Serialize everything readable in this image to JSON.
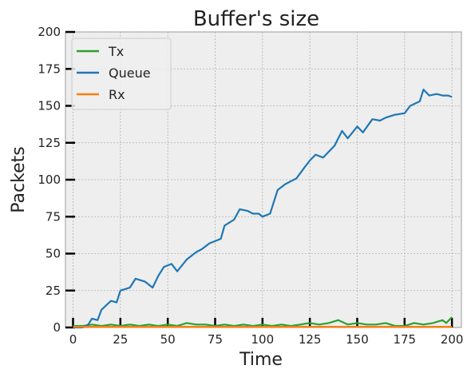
{
  "chart_data": {
    "type": "line",
    "title": "Buffer's size",
    "xlabel": "Time",
    "ylabel": "Packets",
    "xlim": [
      -4,
      205
    ],
    "ylim": [
      0,
      200
    ],
    "xticks": [
      0,
      25,
      50,
      75,
      100,
      125,
      150,
      175,
      200
    ],
    "yticks": [
      0,
      25,
      50,
      75,
      100,
      125,
      150,
      175,
      200
    ],
    "grid": true,
    "legend_position": "top-left",
    "background": "#eeeeee",
    "series": [
      {
        "name": "Tx",
        "color": "#2ca02c",
        "points": [
          [
            0,
            1
          ],
          [
            5,
            1
          ],
          [
            10,
            2
          ],
          [
            15,
            1
          ],
          [
            20,
            2
          ],
          [
            25,
            1
          ],
          [
            30,
            2
          ],
          [
            35,
            1
          ],
          [
            40,
            2
          ],
          [
            45,
            1
          ],
          [
            50,
            2
          ],
          [
            55,
            1
          ],
          [
            60,
            3
          ],
          [
            65,
            2
          ],
          [
            70,
            2
          ],
          [
            75,
            1
          ],
          [
            80,
            2
          ],
          [
            85,
            1
          ],
          [
            90,
            2
          ],
          [
            95,
            1
          ],
          [
            100,
            2
          ],
          [
            105,
            1
          ],
          [
            110,
            2
          ],
          [
            115,
            1
          ],
          [
            120,
            2
          ],
          [
            125,
            3
          ],
          [
            130,
            2
          ],
          [
            135,
            3
          ],
          [
            140,
            5
          ],
          [
            145,
            2
          ],
          [
            150,
            3
          ],
          [
            155,
            2
          ],
          [
            160,
            2
          ],
          [
            165,
            3
          ],
          [
            170,
            1
          ],
          [
            175,
            1
          ],
          [
            180,
            3
          ],
          [
            185,
            2
          ],
          [
            190,
            3
          ],
          [
            195,
            5
          ],
          [
            197,
            3
          ],
          [
            200,
            7
          ]
        ]
      },
      {
        "name": "Queue",
        "color": "#1f77b4",
        "points": [
          [
            0,
            0
          ],
          [
            5,
            0
          ],
          [
            8,
            2
          ],
          [
            10,
            6
          ],
          [
            13,
            5
          ],
          [
            15,
            12
          ],
          [
            20,
            18
          ],
          [
            23,
            17
          ],
          [
            25,
            25
          ],
          [
            30,
            27
          ],
          [
            33,
            33
          ],
          [
            38,
            31
          ],
          [
            42,
            27
          ],
          [
            45,
            35
          ],
          [
            48,
            41
          ],
          [
            52,
            43
          ],
          [
            55,
            38
          ],
          [
            60,
            46
          ],
          [
            65,
            51
          ],
          [
            68,
            53
          ],
          [
            72,
            57
          ],
          [
            78,
            60
          ],
          [
            80,
            69
          ],
          [
            85,
            73
          ],
          [
            88,
            80
          ],
          [
            92,
            79
          ],
          [
            95,
            77
          ],
          [
            98,
            77
          ],
          [
            100,
            75
          ],
          [
            104,
            77
          ],
          [
            108,
            93
          ],
          [
            112,
            97
          ],
          [
            118,
            101
          ],
          [
            122,
            108
          ],
          [
            125,
            113
          ],
          [
            128,
            117
          ],
          [
            132,
            115
          ],
          [
            135,
            119
          ],
          [
            138,
            123
          ],
          [
            142,
            133
          ],
          [
            145,
            128
          ],
          [
            150,
            136
          ],
          [
            153,
            132
          ],
          [
            158,
            141
          ],
          [
            162,
            140
          ],
          [
            165,
            142
          ],
          [
            170,
            144
          ],
          [
            175,
            145
          ],
          [
            178,
            150
          ],
          [
            183,
            153
          ],
          [
            185,
            161
          ],
          [
            188,
            157
          ],
          [
            192,
            158
          ],
          [
            195,
            157
          ],
          [
            198,
            157
          ],
          [
            200,
            156
          ]
        ]
      },
      {
        "name": "Rx",
        "color": "#ff7f0e",
        "points": [
          [
            0,
            0.5
          ],
          [
            200,
            0.5
          ]
        ]
      }
    ]
  }
}
